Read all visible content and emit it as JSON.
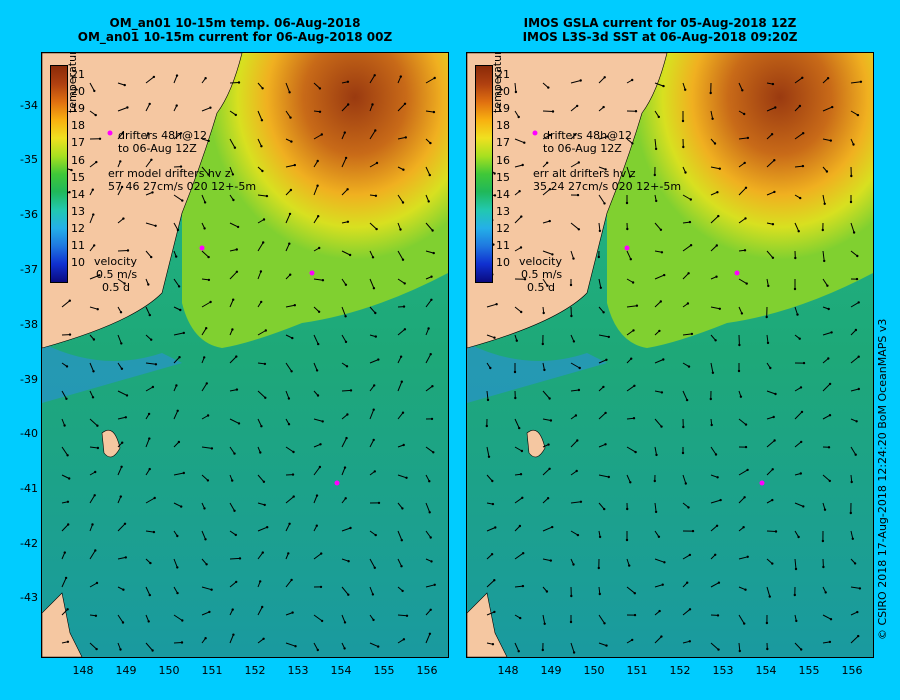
{
  "left": {
    "title_line1": "OM_an01 10-15m temp. 06-Aug-2018",
    "title_line2": "OM_an01 10-15m current for 06-Aug-2018 00Z",
    "legend_drifters_1": "drifters 48h@12",
    "legend_drifters_2": "to 06-Aug 12Z",
    "legend_err_1": "err model drifters hv z",
    "legend_err_2": "57 46 27cm/s 020 12+-5m"
  },
  "right": {
    "title_line1": "IMOS GSLA current for 05-Aug-2018 12Z",
    "title_line2": "IMOS L3S-3d SST at 06-Aug-2018 09:20Z",
    "legend_drifters_1": "drifters 48h@12",
    "legend_drifters_2": "to 06-Aug 12Z",
    "legend_err_1": "err alt drifters hv z",
    "legend_err_2": "35 24 27cm/s 020 12+-5m"
  },
  "colorbar": {
    "title": "temperature (°C)",
    "labels": [
      "21",
      "20",
      "19",
      "18",
      "17",
      "16",
      "15",
      "14",
      "13",
      "12",
      "11",
      "10"
    ]
  },
  "velocity": {
    "label": "velocity",
    "scale": "0.5 m/s",
    "duration": "0.5 d"
  },
  "lat_labels": [
    "-34",
    "-35",
    "-36",
    "-37",
    "-38",
    "-39",
    "-40",
    "-41",
    "-42",
    "-43"
  ],
  "lon_labels": [
    "148",
    "149",
    "150",
    "151",
    "152",
    "153",
    "154",
    "155",
    "156"
  ],
  "copyright": "© CSIRO 2018   17-Aug-2018 12:24:20 BoM OceanMAPS v3",
  "colors": {
    "background": "#00ccff",
    "land": "#f5c7a1",
    "warm": "#b0501a",
    "cool": "#1aa07a",
    "drifter": "#ff00ff"
  }
}
